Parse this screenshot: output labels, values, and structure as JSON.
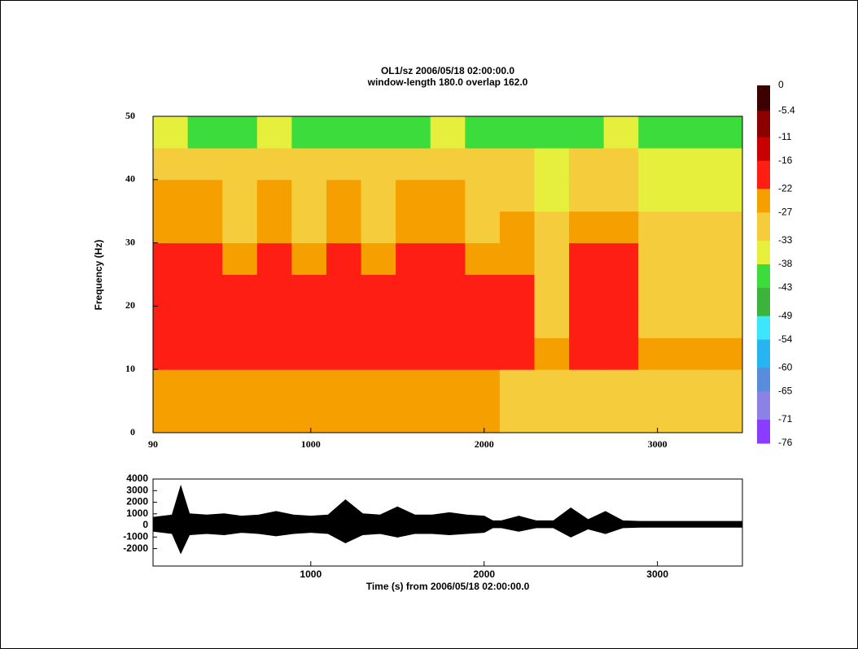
{
  "chart_data": [
    {
      "type": "heatmap",
      "title": "OL1/sz 2006/05/18 02:00:00.0",
      "subtitle": "window-length 180.0  overlap 162.0",
      "ylabel": "Frequency (Hz)",
      "xbins": [
        90,
        290,
        490,
        690,
        890,
        1090,
        1290,
        1490,
        1690,
        1890,
        2090,
        2290,
        2490,
        2690,
        2890,
        3090,
        3290,
        3490
      ],
      "ybins": [
        0,
        5,
        10,
        15,
        20,
        25,
        30,
        35,
        40,
        45,
        50
      ],
      "z": [
        [
          -27,
          -27,
          -27,
          -27,
          -27,
          -27,
          -27,
          -27,
          -27,
          -27,
          -28,
          -28,
          -28,
          -28,
          -28,
          -28,
          -28
        ],
        [
          -26,
          -26,
          -26,
          -26,
          -26,
          -26,
          -26,
          -26,
          -26,
          -26,
          -28,
          -28,
          -28,
          -28,
          -28,
          -28,
          -28
        ],
        [
          -20,
          -20,
          -20,
          -20,
          -20,
          -20,
          -20,
          -20,
          -20,
          -20,
          -22,
          -26,
          -20,
          -21,
          -27,
          -27,
          -27
        ],
        [
          -19,
          -19,
          -19,
          -19,
          -19,
          -19,
          -19,
          -19,
          -19,
          -19,
          -20,
          -28,
          -19,
          -20,
          -29,
          -29,
          -29
        ],
        [
          -18,
          -18,
          -18,
          -18,
          -18,
          -18,
          -18,
          -18,
          -18,
          -18,
          -21,
          -29,
          -19,
          -20,
          -30,
          -30,
          -30
        ],
        [
          -22,
          -22,
          -27,
          -22,
          -27,
          -22,
          -27,
          -22,
          -22,
          -25,
          -24,
          -31,
          -22,
          -22,
          -31,
          -31,
          -31
        ],
        [
          -24,
          -24,
          -29,
          -24,
          -29,
          -24,
          -29,
          -24,
          -24,
          -28,
          -26,
          -32,
          -24,
          -24,
          -32,
          -32,
          -32
        ],
        [
          -27,
          -27,
          -30,
          -27,
          -30,
          -27,
          -30,
          -27,
          -27,
          -30,
          -28,
          -34,
          -28,
          -28,
          -34,
          -34,
          -34
        ],
        [
          -30,
          -30,
          -30,
          -30,
          -30,
          -30,
          -30,
          -30,
          -30,
          -30,
          -31,
          -36,
          -31,
          -31,
          -36,
          -37,
          -37
        ],
        [
          -36,
          -40,
          -40,
          -36,
          -40,
          -40,
          -40,
          -40,
          -36,
          -40,
          -41,
          -41,
          -41,
          -36,
          -41,
          -41,
          -41
        ]
      ],
      "xlim": [
        90,
        3490
      ],
      "ylim": [
        0,
        50
      ],
      "xticks": [
        90,
        1000,
        2000,
        3000
      ],
      "yticks": [
        0,
        10,
        20,
        30,
        40,
        50
      ],
      "colorbar": {
        "ticks": [
          0,
          -5.4,
          -11,
          -16,
          -22,
          -27,
          -33,
          -38,
          -43,
          -49,
          -54,
          -60,
          -65,
          -71,
          -76
        ],
        "colors": [
          "#3c0000",
          "#8c0000",
          "#c80000",
          "#ff1e14",
          "#f5a000",
          "#f5cd3c",
          "#e6f03c",
          "#3cdc3c",
          "#3cb43c",
          "#3ce6ff",
          "#28b4f0",
          "#5a8cdc",
          "#8c82e6",
          "#8a3cff"
        ]
      }
    },
    {
      "type": "area",
      "xlabel": "Time (s) from 2006/05/18 02:00:00.0",
      "x": [
        90,
        200,
        250,
        300,
        400,
        500,
        600,
        700,
        800,
        900,
        1000,
        1100,
        1200,
        1300,
        1400,
        1500,
        1600,
        1700,
        1800,
        1900,
        2000,
        2050,
        2100,
        2200,
        2300,
        2400,
        2500,
        2600,
        2700,
        2800,
        2900,
        3000,
        3100,
        3200,
        3300,
        3490
      ],
      "upper": [
        700,
        900,
        3400,
        1000,
        900,
        1000,
        800,
        900,
        1200,
        900,
        800,
        900,
        2200,
        1000,
        900,
        1600,
        900,
        900,
        1100,
        900,
        800,
        400,
        400,
        800,
        400,
        400,
        1500,
        500,
        1200,
        400,
        350,
        350,
        350,
        350,
        350,
        350
      ],
      "lower": [
        -500,
        -700,
        -2400,
        -800,
        -700,
        -800,
        -600,
        -700,
        -900,
        -700,
        -600,
        -700,
        -1500,
        -800,
        -700,
        -1000,
        -700,
        -700,
        -800,
        -700,
        -600,
        -200,
        -200,
        -500,
        -200,
        -200,
        -1000,
        -300,
        -700,
        -200,
        -150,
        -150,
        -150,
        -150,
        -150,
        -150
      ],
      "color": "#000000",
      "xlim": [
        90,
        3490
      ],
      "ylim": [
        -3500,
        4000
      ],
      "xticks": [
        1000,
        2000,
        3000
      ],
      "yticks": [
        -2000,
        -1000,
        0,
        1000,
        2000,
        3000,
        4000
      ]
    }
  ]
}
